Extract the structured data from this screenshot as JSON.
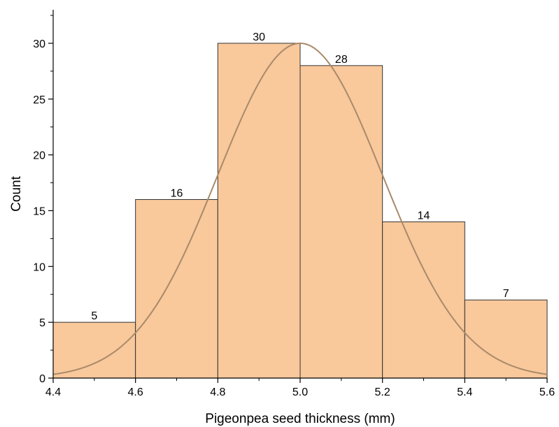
{
  "chart_data": {
    "type": "bar",
    "subtype": "histogram",
    "title": "",
    "xlabel": "Pigeonpea seed thickness (mm)",
    "ylabel": "Count",
    "xlim": [
      4.4,
      5.6
    ],
    "ylim": [
      0,
      33
    ],
    "x_ticks": [
      "4.4",
      "4.6",
      "4.8",
      "5.0",
      "5.2",
      "5.4",
      "5.6"
    ],
    "y_ticks": [
      "0",
      "5",
      "10",
      "15",
      "20",
      "25",
      "30"
    ],
    "bins": [
      {
        "start": 4.4,
        "end": 4.6,
        "value": 5,
        "label": "5"
      },
      {
        "start": 4.6,
        "end": 4.8,
        "value": 16,
        "label": "16"
      },
      {
        "start": 4.8,
        "end": 5.0,
        "value": 30,
        "label": "30"
      },
      {
        "start": 5.0,
        "end": 5.2,
        "value": 28,
        "label": "28"
      },
      {
        "start": 5.2,
        "end": 5.4,
        "value": 14,
        "label": "14"
      },
      {
        "start": 5.4,
        "end": 5.6,
        "value": 7,
        "label": "7"
      }
    ],
    "fit_curve": {
      "type": "normal",
      "mean": 5.0,
      "sd": 0.2,
      "peak": 30
    },
    "grid": false,
    "colors": {
      "bar_fill": "#F9C89B",
      "bar_stroke": "#333333",
      "curve": "#A98A6A",
      "axis": "#000000"
    }
  }
}
